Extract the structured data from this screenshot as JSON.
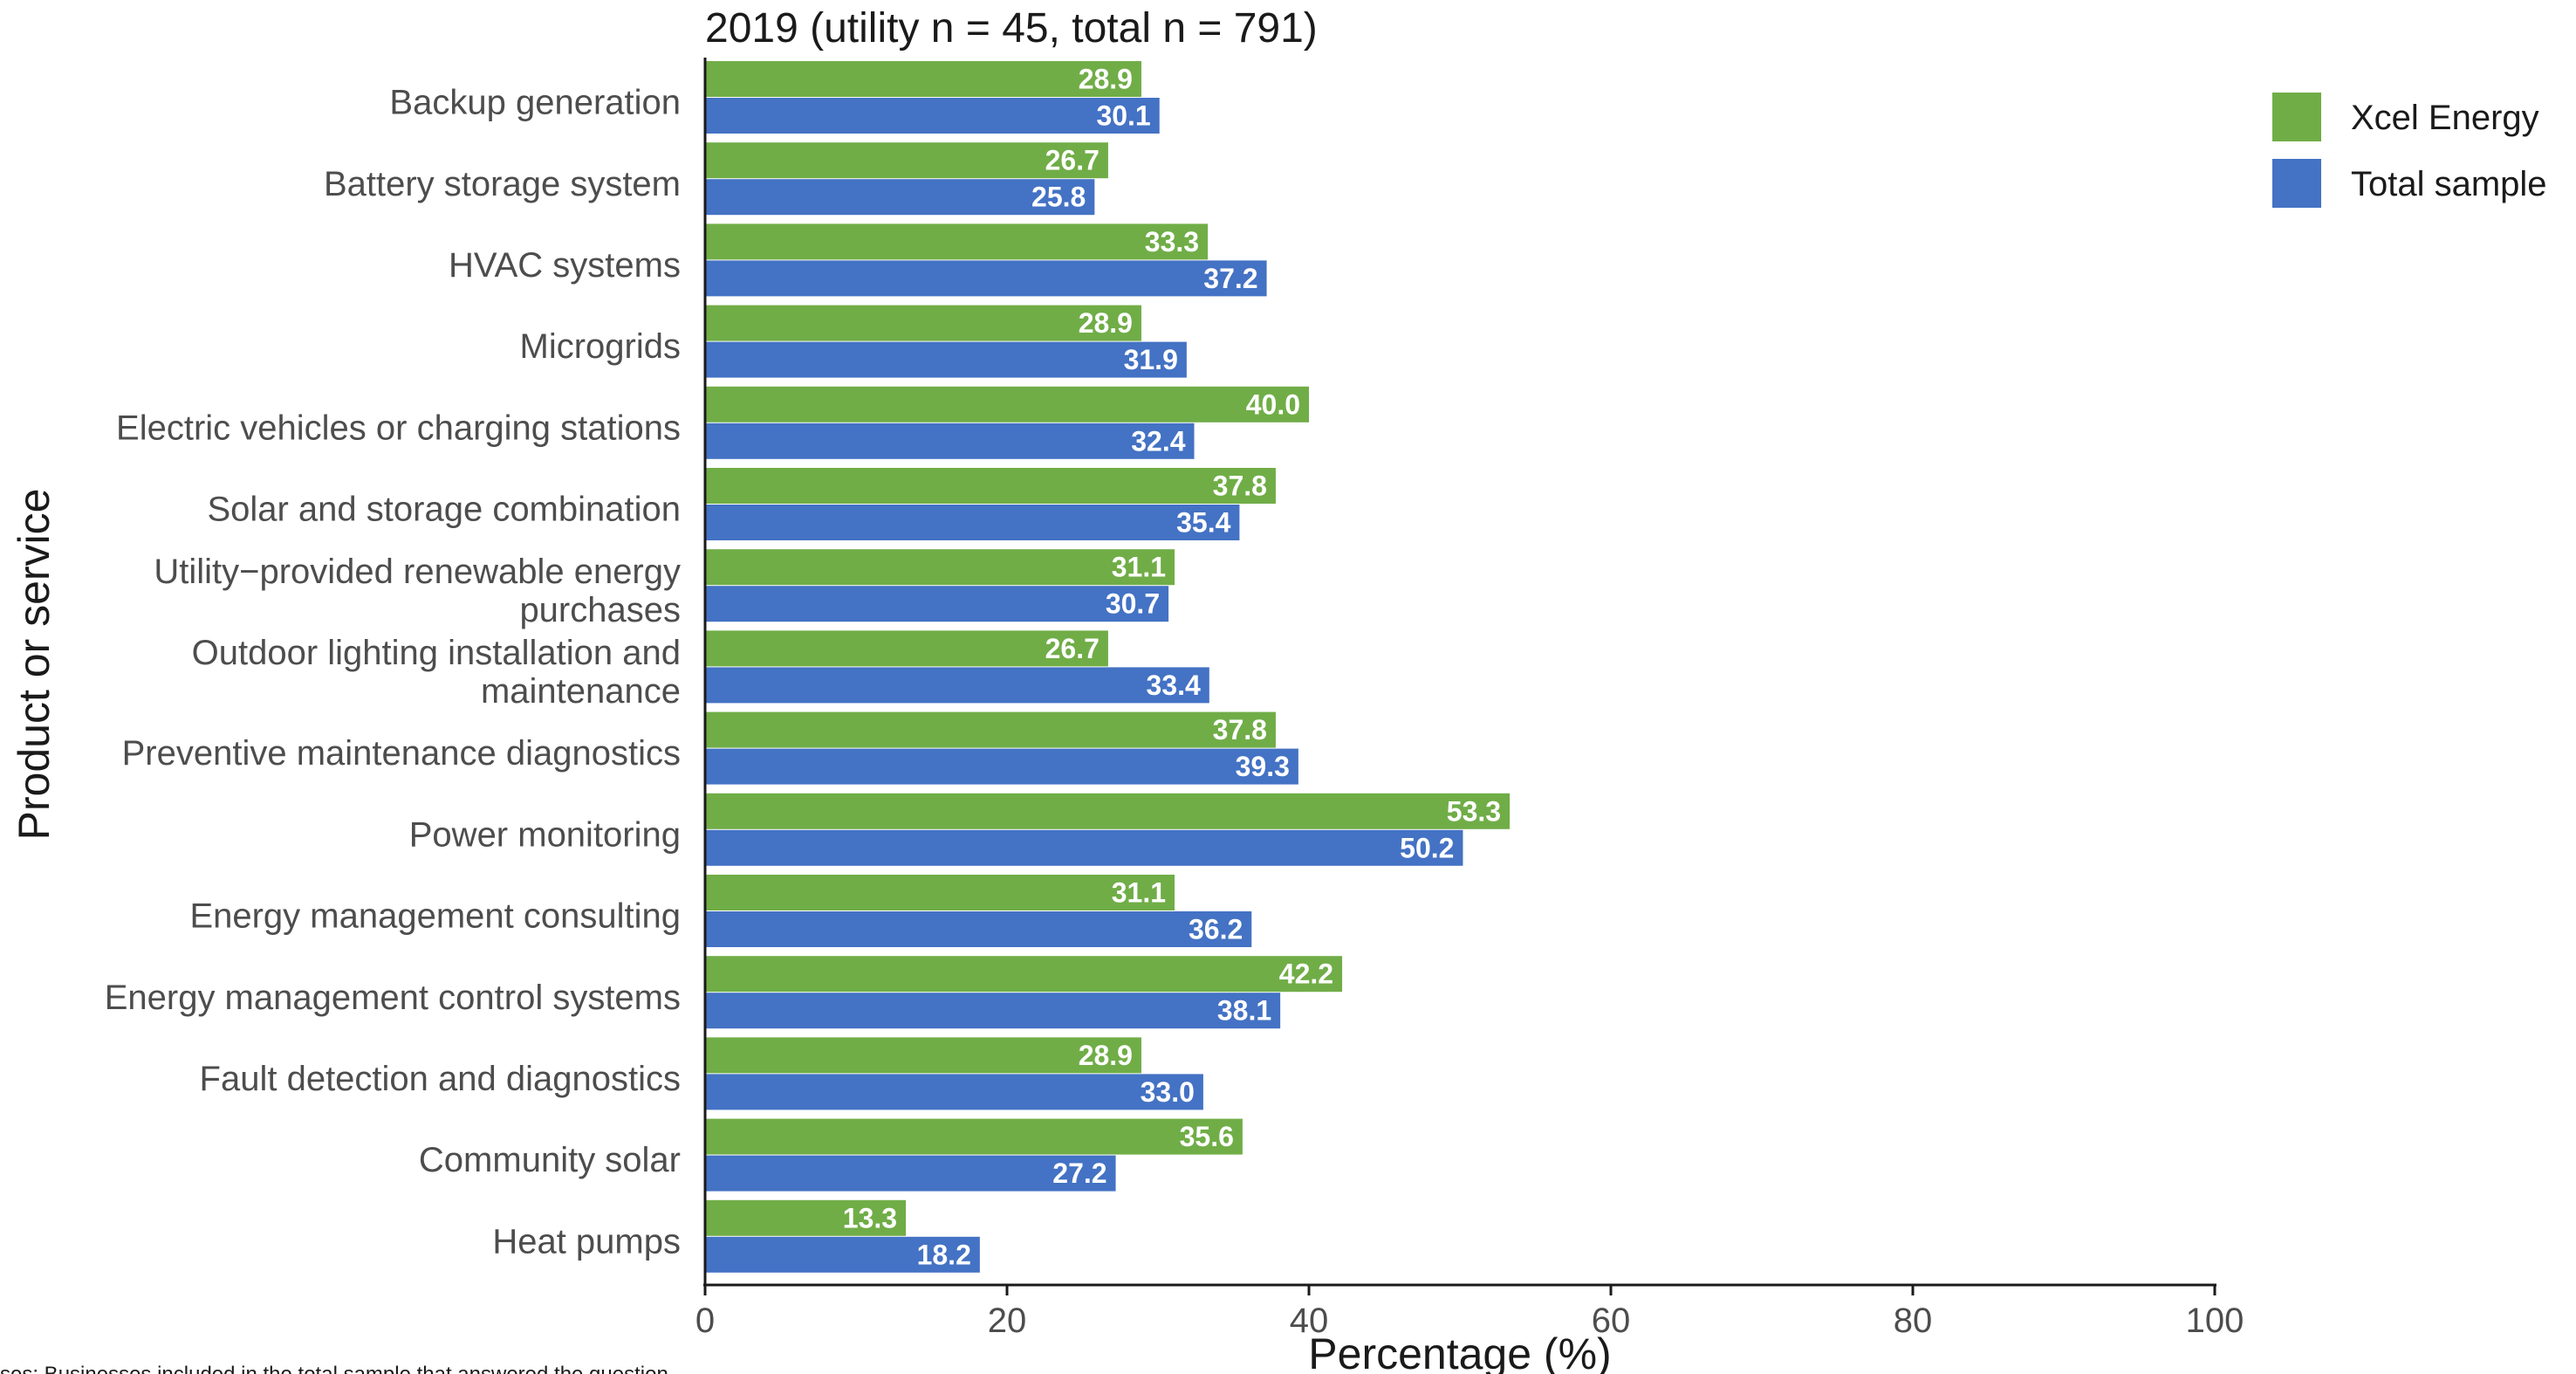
{
  "chart_data": {
    "type": "bar",
    "orientation": "horizontal",
    "title": "2019 (utility n = 45, total n = 791)",
    "xlabel": "Percentage (%)",
    "ylabel": "Product or service",
    "xlim": [
      0,
      100
    ],
    "xticks": [
      "0",
      "20",
      "40",
      "60",
      "80",
      "100"
    ],
    "xtick_values": [
      0,
      20,
      40,
      60,
      80,
      100
    ],
    "grid": false,
    "legend_position": "top-right",
    "categories": [
      [
        "Backup generation"
      ],
      [
        "Battery storage system"
      ],
      [
        "HVAC systems"
      ],
      [
        "Microgrids"
      ],
      [
        "Electric vehicles or charging stations"
      ],
      [
        "Solar and storage combination"
      ],
      [
        "Utility−provided renewable energy",
        "purchases"
      ],
      [
        "Outdoor lighting installation and",
        "maintenance"
      ],
      [
        "Preventive maintenance diagnostics"
      ],
      [
        "Power monitoring"
      ],
      [
        "Energy management consulting"
      ],
      [
        "Energy management control systems"
      ],
      [
        "Fault detection and diagnostics"
      ],
      [
        "Community solar"
      ],
      [
        "Heat pumps"
      ]
    ],
    "series": [
      {
        "name": "Xcel Energy",
        "color": "#70AD47",
        "values": [
          28.9,
          26.7,
          33.3,
          28.9,
          40.0,
          37.8,
          31.1,
          26.7,
          37.8,
          53.3,
          31.1,
          42.2,
          28.9,
          35.6,
          13.3
        ],
        "labels": [
          "28.9",
          "26.7",
          "33.3",
          "28.9",
          "40.0",
          "37.8",
          "31.1",
          "26.7",
          "37.8",
          "53.3",
          "31.1",
          "42.2",
          "28.9",
          "35.6",
          "13.3"
        ]
      },
      {
        "name": "Total sample",
        "color": "#4472C4",
        "values": [
          30.1,
          25.8,
          37.2,
          31.9,
          32.4,
          35.4,
          30.7,
          33.4,
          39.3,
          50.2,
          36.2,
          38.1,
          33.0,
          27.2,
          18.2
        ],
        "labels": [
          "30.1",
          "25.8",
          "37.2",
          "31.9",
          "32.4",
          "35.4",
          "30.7",
          "33.4",
          "39.3",
          "50.2",
          "36.2",
          "38.1",
          "33.0",
          "27.2",
          "18.2"
        ]
      }
    ],
    "footnote": "ses: Businesses included in the total sample that answered the question"
  }
}
